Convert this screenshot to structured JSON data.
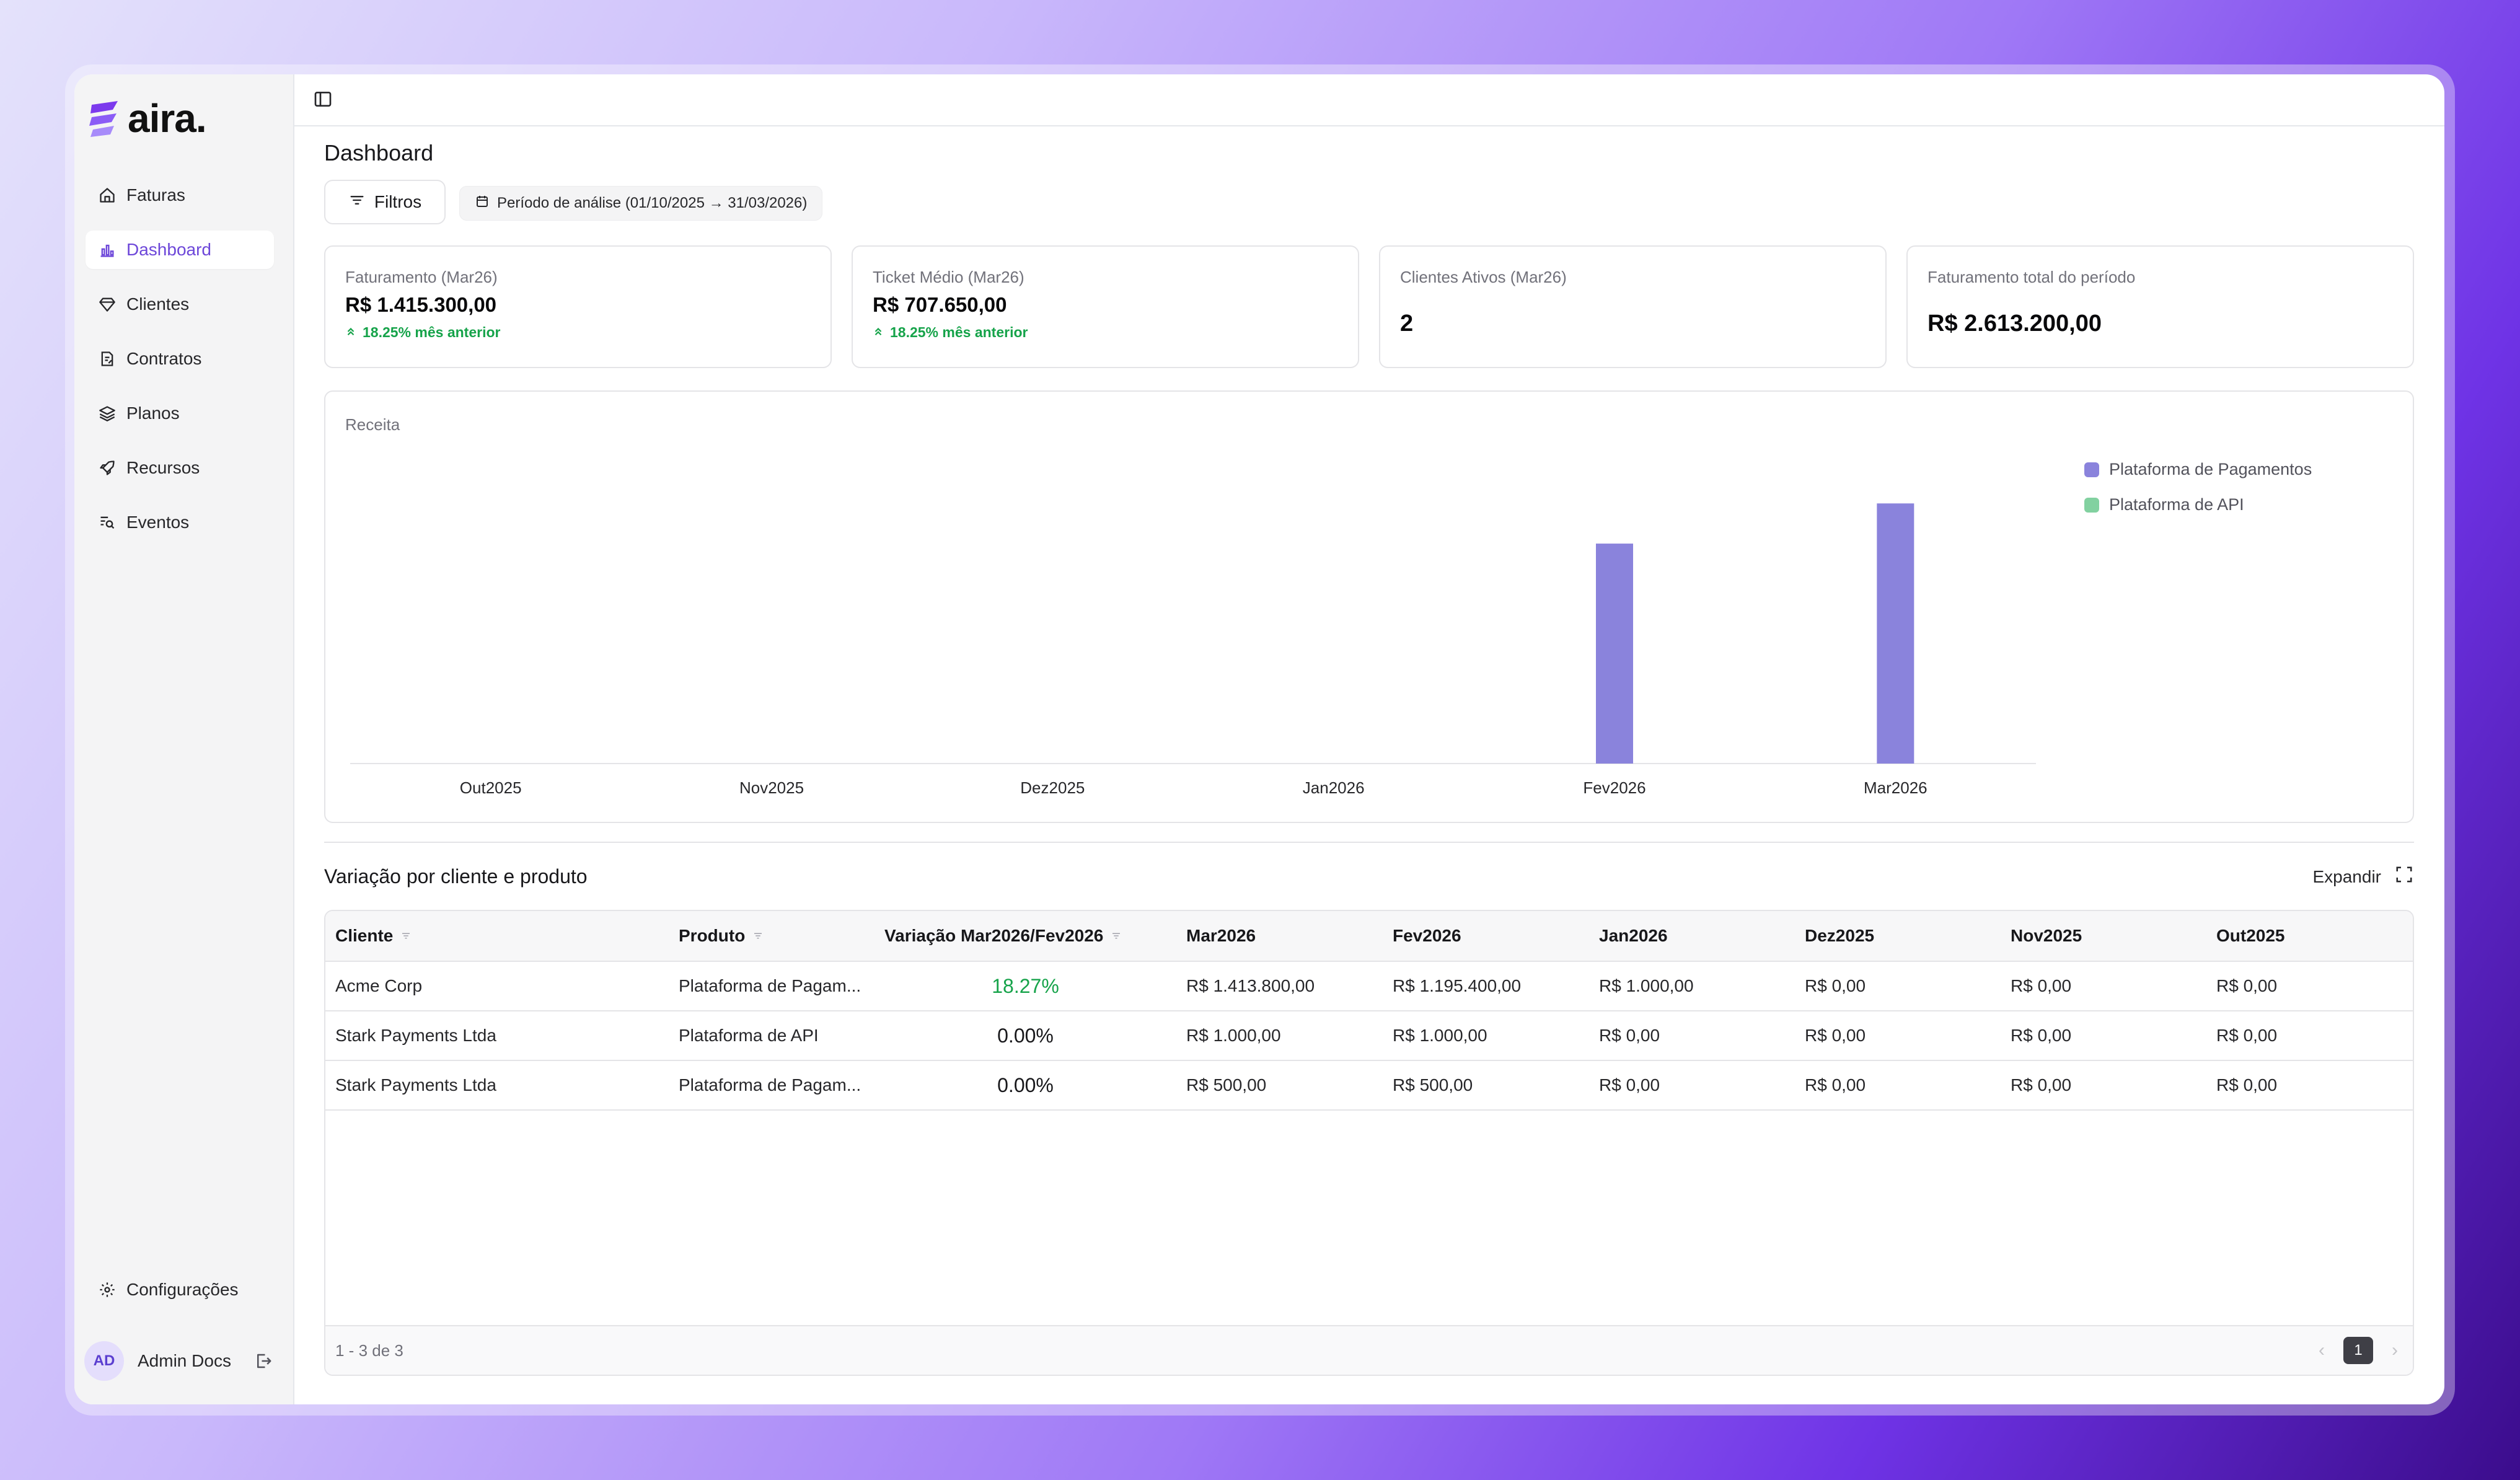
{
  "app": {
    "logo_text": "aira."
  },
  "sidebar": {
    "items": [
      {
        "label": "Faturas",
        "icon": "home-icon"
      },
      {
        "label": "Dashboard",
        "icon": "chart-icon"
      },
      {
        "label": "Clientes",
        "icon": "gem-icon"
      },
      {
        "label": "Contratos",
        "icon": "contract-icon"
      },
      {
        "label": "Planos",
        "icon": "layers-icon"
      },
      {
        "label": "Recursos",
        "icon": "rocket-icon"
      },
      {
        "label": "Eventos",
        "icon": "event-search-icon"
      }
    ],
    "active": "Dashboard",
    "settings_label": "Configurações",
    "user": {
      "initials": "AD",
      "name": "Admin Docs"
    }
  },
  "header": {
    "title": "Dashboard",
    "filters_label": "Filtros",
    "period_label": "Período de análise (01/10/2025 → 31/03/2026)"
  },
  "kpis": [
    {
      "label": "Faturamento (Mar26)",
      "value": "R$ 1.415.300,00",
      "delta": "18.25% mês anterior"
    },
    {
      "label": "Ticket Médio (Mar26)",
      "value": "R$ 707.650,00",
      "delta": "18.25% mês anterior"
    },
    {
      "label": "Clientes Ativos (Mar26)",
      "value": "2"
    },
    {
      "label": "Faturamento total do período",
      "value": "R$ 2.613.200,00"
    }
  ],
  "chart_data": {
    "type": "bar",
    "title": "Receita",
    "categories": [
      "Out2025",
      "Nov2025",
      "Dez2025",
      "Jan2026",
      "Fev2026",
      "Mar2026"
    ],
    "series": [
      {
        "name": "Plataforma de Pagamentos",
        "values": [
          0,
          0,
          0,
          1000,
          1195900,
          1414300
        ],
        "color": "#8a83dc"
      },
      {
        "name": "Plataforma de API",
        "values": [
          0,
          0,
          0,
          0,
          1000,
          1000
        ],
        "color": "#82d1a0"
      }
    ],
    "ylim": [
      0,
      1550000
    ],
    "grid": false,
    "legend_position": "right"
  },
  "table": {
    "title": "Variação por cliente e produto",
    "expand_label": "Expandir",
    "columns": [
      "Cliente",
      "Produto",
      "Variação Mar2026/Fev2026",
      "Mar2026",
      "Fev2026",
      "Jan2026",
      "Dez2025",
      "Nov2025",
      "Out2025"
    ],
    "rows": [
      [
        "Acme Corp",
        "Plataforma de Pagam...",
        "18.27%",
        "R$ 1.413.800,00",
        "R$ 1.195.400,00",
        "R$ 1.000,00",
        "R$ 0,00",
        "R$ 0,00",
        "R$ 0,00"
      ],
      [
        "Stark Payments Ltda",
        "Plataforma de API",
        "0.00%",
        "R$ 1.000,00",
        "R$ 1.000,00",
        "R$ 0,00",
        "R$ 0,00",
        "R$ 0,00",
        "R$ 0,00"
      ],
      [
        "Stark Payments Ltda",
        "Plataforma de Pagam...",
        "0.00%",
        "R$ 500,00",
        "R$ 500,00",
        "R$ 0,00",
        "R$ 0,00",
        "R$ 0,00",
        "R$ 0,00"
      ]
    ],
    "footer_count": "1 - 3 de 3",
    "current_page": "1"
  },
  "colors": {
    "accent": "#6d47d9",
    "positive": "#16a34a",
    "bar_primary": "#8a83dc",
    "bar_secondary": "#82d1a0"
  }
}
